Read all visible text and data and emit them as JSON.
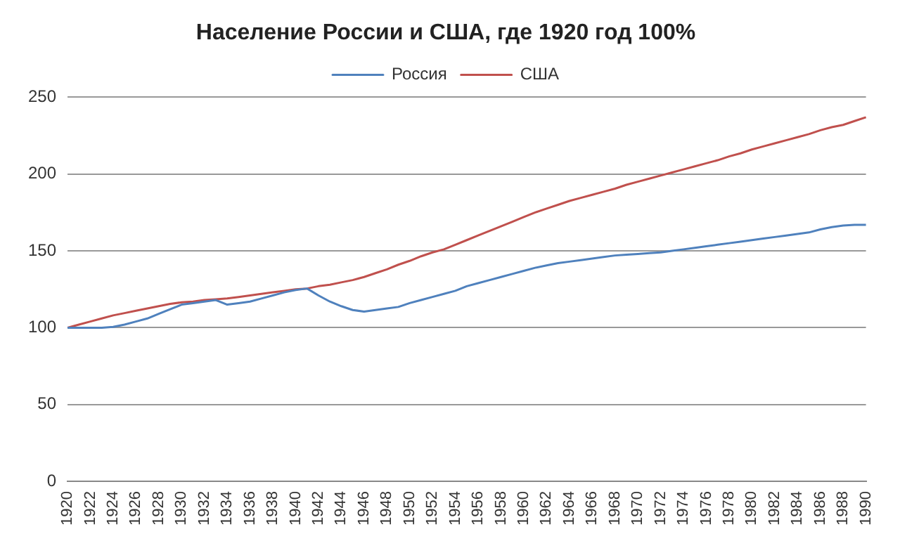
{
  "chart_data": {
    "type": "line",
    "title": "Население России и США, где 1920 год 100%",
    "categories": [
      "1920",
      null,
      "1922",
      null,
      "1924",
      null,
      "1926",
      null,
      "1928",
      null,
      "1930",
      null,
      "1932",
      null,
      "1934",
      null,
      "1936",
      null,
      "1938",
      null,
      "1940",
      null,
      "1942",
      null,
      "1944",
      null,
      "1946",
      null,
      "1948",
      null,
      "1950",
      null,
      "1952",
      null,
      "1954",
      null,
      "1956",
      null,
      "1958",
      null,
      "1960",
      null,
      "1962",
      null,
      "1964",
      null,
      "1966",
      null,
      "1968",
      null,
      "1970",
      null,
      "1972",
      null,
      "1974",
      null,
      "1976",
      null,
      "1978",
      null,
      "1980",
      null,
      "1982",
      null,
      "1984",
      null,
      "1986",
      null,
      "1988",
      null,
      "1990"
    ],
    "series": [
      {
        "name": "Россия",
        "color": "#4f81bd",
        "values": [
          100,
          100,
          100,
          100,
          100.5,
          102,
          104,
          106,
          109,
          112,
          115,
          116,
          117,
          118,
          115,
          116,
          117,
          119,
          121,
          123,
          124.5,
          125.5,
          121,
          117,
          114,
          111.5,
          110.5,
          111.5,
          112.5,
          113.5,
          116,
          118,
          120,
          122,
          124,
          127,
          129,
          131,
          133,
          135,
          137,
          139,
          140.5,
          142,
          143,
          144,
          145,
          146,
          147,
          147.5,
          148,
          148.5,
          149,
          150,
          151,
          152,
          153,
          154,
          155,
          156,
          157,
          158,
          159,
          160,
          161,
          162,
          164,
          165.5,
          166.5,
          167,
          167
        ]
      },
      {
        "name": "США",
        "color": "#c0504d",
        "values": [
          100,
          102,
          104,
          106,
          108,
          109.5,
          111,
          112.5,
          114,
          115.5,
          116.5,
          117,
          118,
          118.5,
          119,
          120,
          121,
          122,
          123,
          124,
          125,
          125.5,
          127,
          128,
          129.5,
          131,
          133,
          135.5,
          138,
          141,
          143.5,
          146.5,
          149,
          151,
          154,
          157,
          160,
          163,
          166,
          169,
          172,
          175,
          177.5,
          180,
          182.5,
          184.5,
          186.5,
          188.5,
          190.5,
          193,
          195,
          197,
          199,
          201,
          203,
          205,
          207,
          209,
          211.5,
          213.5,
          216,
          218,
          220,
          222,
          224,
          226,
          228.5,
          230.5,
          232,
          234.5,
          237
        ]
      }
    ],
    "ylim": [
      0,
      250
    ],
    "yticks": [
      0,
      50,
      100,
      150,
      200,
      250
    ],
    "grid": "y",
    "legend": "top",
    "marker": "none",
    "line_style": "solid"
  }
}
